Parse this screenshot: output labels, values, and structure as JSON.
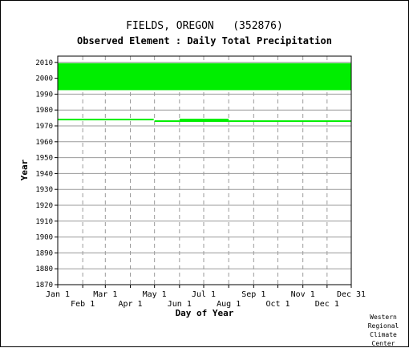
{
  "chart_data": {
    "type": "scatter",
    "title": "FIELDS, OREGON   (352876)",
    "subtitle": "Observed Element : Daily Total Precipitation",
    "xlabel": "Day of Year",
    "ylabel": "Year",
    "xlim": [
      1,
      365
    ],
    "ylim": [
      1870,
      2011
    ],
    "grid": true,
    "color": "#00ee00",
    "y_ticks": [
      2010,
      2000,
      1990,
      1980,
      1970,
      1960,
      1950,
      1940,
      1930,
      1920,
      1910,
      1900,
      1890,
      1880,
      1870
    ],
    "x_ticks_upper": [
      {
        "label": "Jan 1",
        "day": 1
      },
      {
        "label": "Mar 1",
        "day": 60
      },
      {
        "label": "May 1",
        "day": 121
      },
      {
        "label": "Jul 1",
        "day": 182
      },
      {
        "label": "Sep 1",
        "day": 244
      },
      {
        "label": "Nov 1",
        "day": 305
      },
      {
        "label": "Dec 31",
        "day": 365
      }
    ],
    "x_ticks_lower": [
      {
        "label": "Feb 1",
        "day": 32
      },
      {
        "label": "Apr 1",
        "day": 91
      },
      {
        "label": "Jun 1",
        "day": 152
      },
      {
        "label": "Aug 1",
        "day": 213
      },
      {
        "label": "Oct 1",
        "day": 274
      },
      {
        "label": "Dec 1",
        "day": 335
      }
    ],
    "coverage": [
      {
        "start_day": 1,
        "end_day": 365,
        "start_year": 1993,
        "end_year": 2009
      },
      {
        "start_day": 1,
        "end_day": 120,
        "start_year": 1974,
        "end_year": 1974
      },
      {
        "start_day": 121,
        "end_day": 152,
        "start_year": 1973,
        "end_year": 1973
      },
      {
        "start_day": 152,
        "end_day": 213,
        "start_year": 1973,
        "end_year": 1974
      },
      {
        "start_day": 213,
        "end_day": 365,
        "start_year": 1973,
        "end_year": 1973
      }
    ]
  },
  "credit": [
    "Western",
    "Regional",
    "Climate",
    "Center"
  ]
}
